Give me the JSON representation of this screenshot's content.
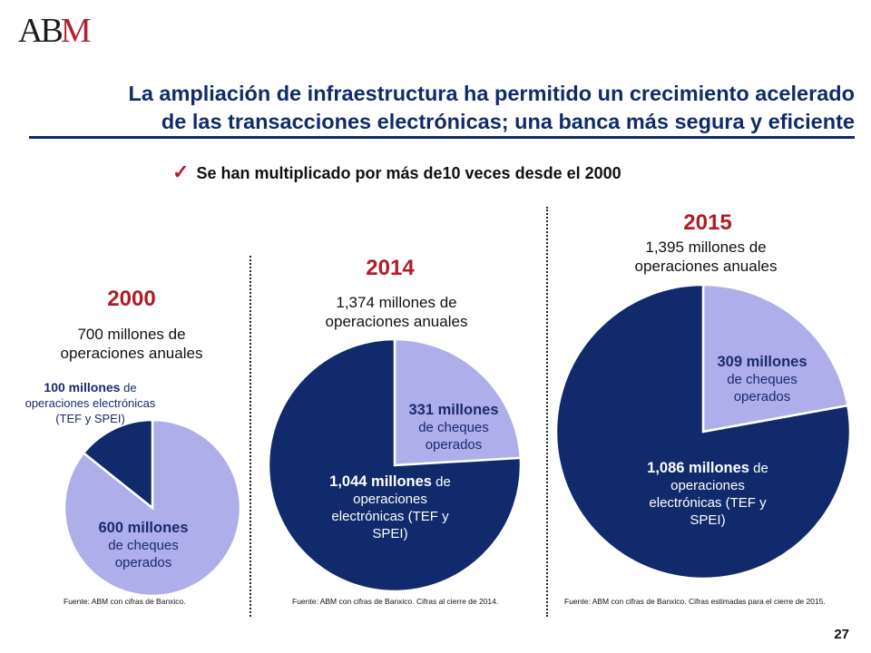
{
  "logo": {
    "text_a": "A",
    "text_b": "B",
    "text_m": "M"
  },
  "header": {
    "title_line1": "La ampliación de infraestructura ha permitido un crecimiento acelerado",
    "title_line2": "de las transacciones electrónicas; una banca más segura y eficiente",
    "subtitle": "Se han multiplicado por más de10 veces desde el 2000",
    "check_icon": "checkmark-icon"
  },
  "colors": {
    "electronic": "#102a6b",
    "cheques": "#aeaeeb",
    "year": "#b01c25",
    "title": "#102b6b"
  },
  "panels": [
    {
      "year": "2000",
      "total_text": "700 millones de operaciones anuales",
      "electronic": {
        "value_text": "100 millones",
        "suffix": "de",
        "desc": "operaciones electrónicas (TEF y SPEI)"
      },
      "cheques": {
        "value_text": "600 millones",
        "desc": "de cheques operados"
      },
      "source": "Fuente: ABM con cifras de Banxico."
    },
    {
      "year": "2014",
      "total_text": "1,374 millones de operaciones anuales",
      "electronic": {
        "value_text": "1,044 millones",
        "suffix": "de",
        "desc": "operaciones electrónicas (TEF y SPEI)"
      },
      "cheques": {
        "value_text": "331 millones",
        "desc": "de cheques operados"
      },
      "source": "Fuente: ABM con cifras de Banxico. Cifras al cierre de 2014."
    },
    {
      "year": "2015",
      "total_text": "1,395 millones de operaciones anuales",
      "electronic": {
        "value_text": "1,086 millones",
        "suffix": "de",
        "desc": "operaciones electrónicas (TEF y SPEI)"
      },
      "cheques": {
        "value_text": "309 millones",
        "desc": "de cheques operados"
      },
      "source": "Fuente: ABM con cifras de Banxico. Cifras estimadas para el cierre de 2015."
    }
  ],
  "chart_data": [
    {
      "type": "pie",
      "title": "2000",
      "categories": [
        "operaciones electrónicas (TEF y SPEI)",
        "cheques operados"
      ],
      "values": [
        100,
        600
      ],
      "units": "millones"
    },
    {
      "type": "pie",
      "title": "2014",
      "categories": [
        "operaciones electrónicas (TEF y SPEI)",
        "cheques operados"
      ],
      "values": [
        1044,
        331
      ],
      "units": "millones"
    },
    {
      "type": "pie",
      "title": "2015",
      "categories": [
        "operaciones electrónicas (TEF y SPEI)",
        "cheques operados"
      ],
      "values": [
        1086,
        309
      ],
      "units": "millones"
    }
  ],
  "page_number": "27"
}
